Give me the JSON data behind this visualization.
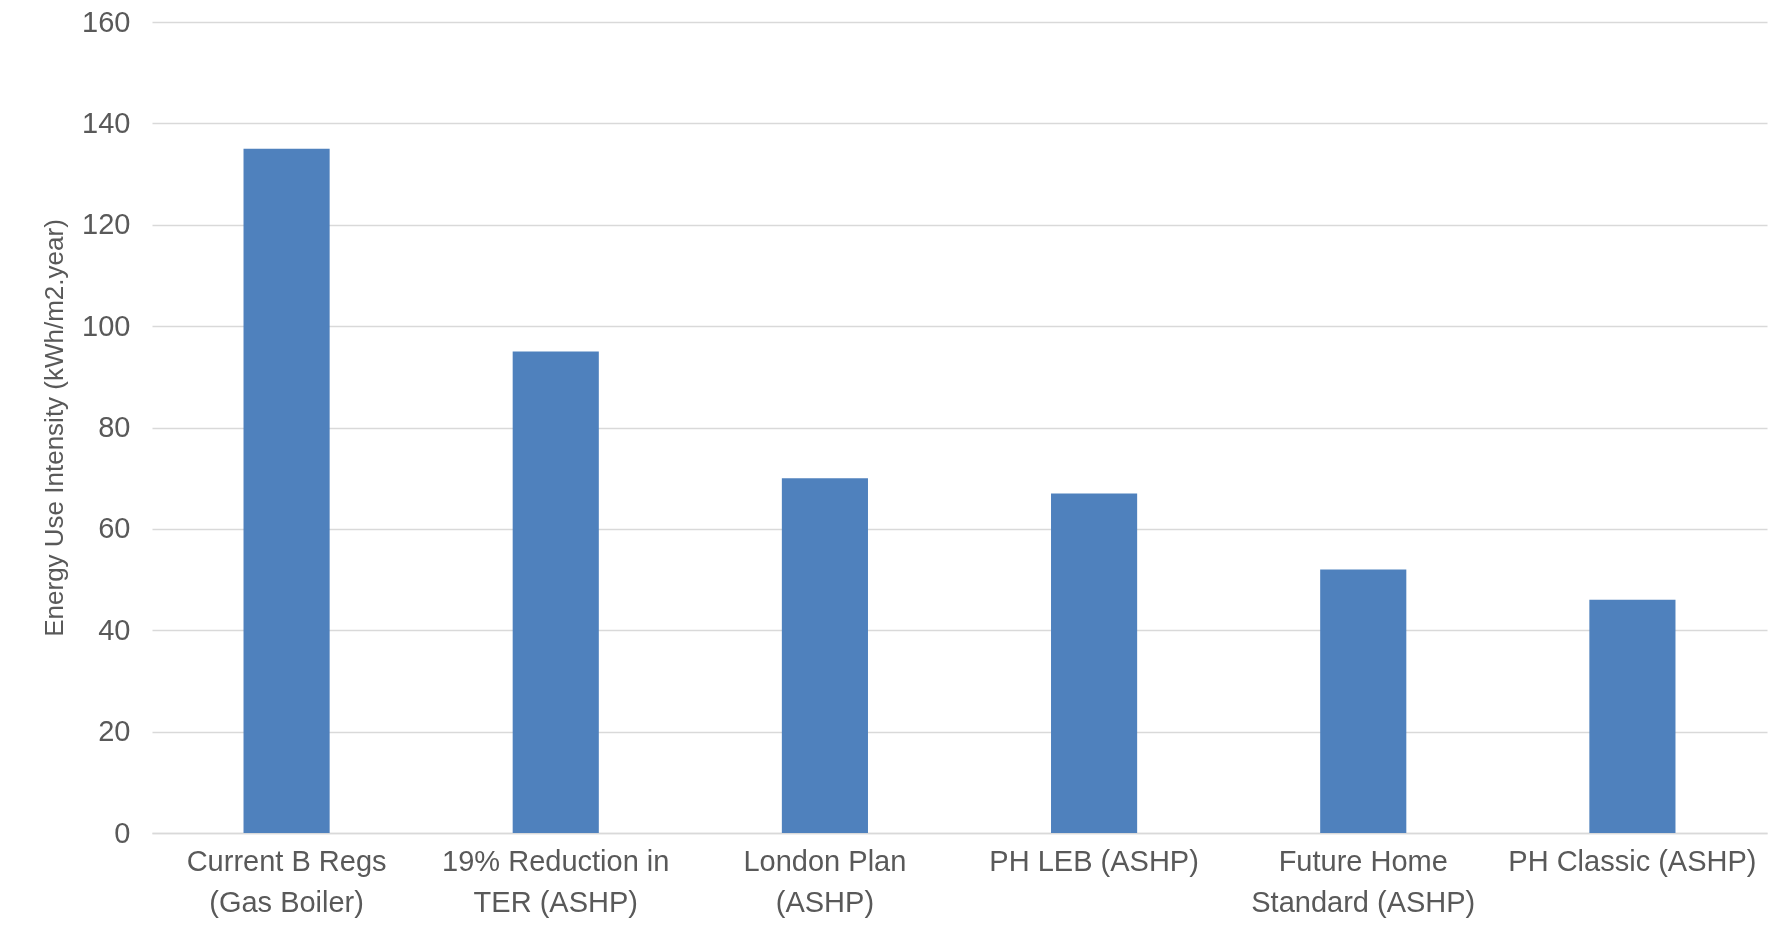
{
  "chart_data": {
    "type": "bar",
    "ylabel": "Energy Use Intensity (kWh/m2.year)",
    "categories": [
      "Current B Regs (Gas Boiler)",
      "19% Reduction in TER (ASHP)",
      "London Plan (ASHP)",
      "PH LEB (ASHP)",
      "Future Home Standard (ASHP)",
      "PH Classic (ASHP)"
    ],
    "values": [
      135,
      95,
      70,
      67,
      52,
      46
    ],
    "color": "#4f81bd",
    "ylim": [
      0,
      160
    ],
    "yticks": [
      0,
      20,
      40,
      60,
      80,
      100,
      120,
      140,
      160
    ],
    "grid": true
  }
}
